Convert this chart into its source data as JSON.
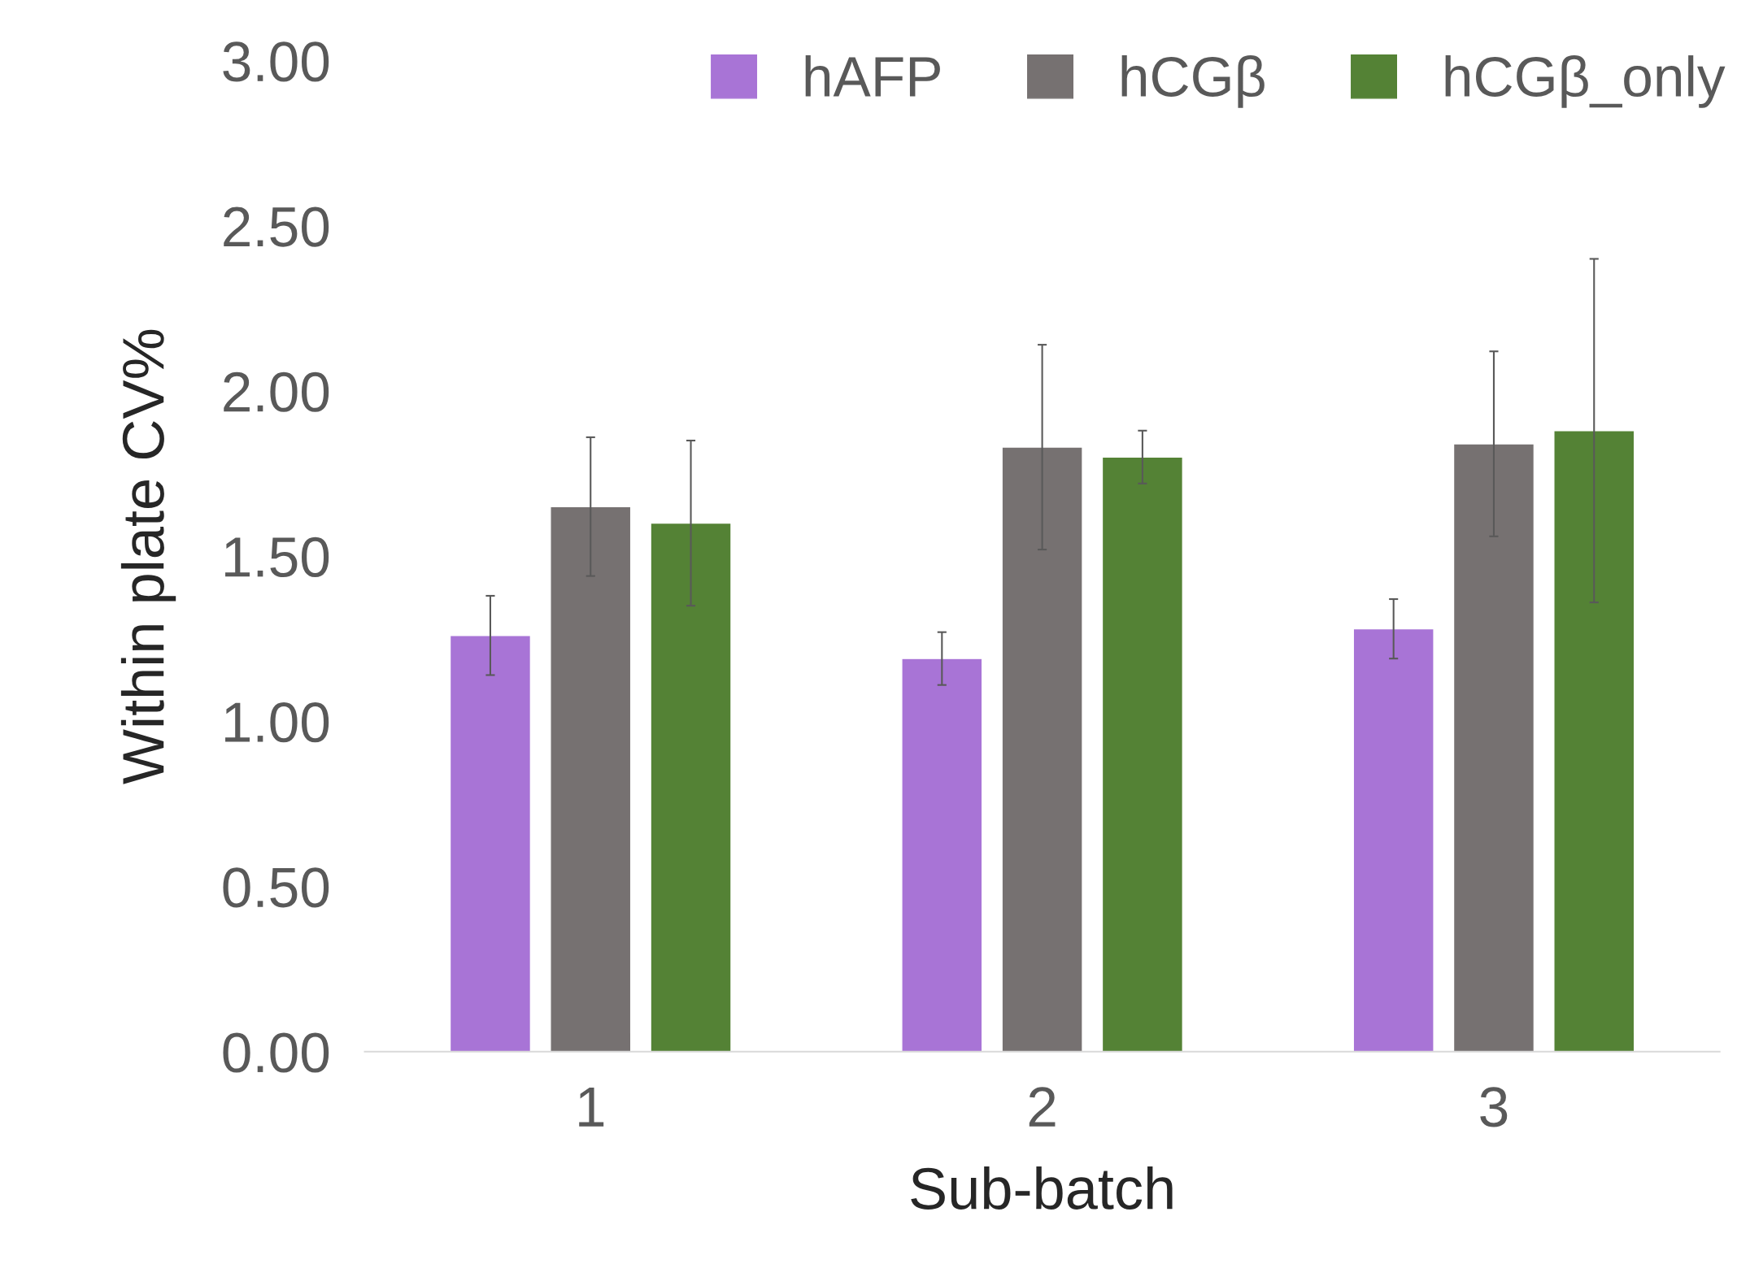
{
  "chart_data": {
    "type": "bar",
    "xlabel": "Sub-batch",
    "ylabel": "Within plate CV%",
    "categories": [
      "1",
      "2",
      "3"
    ],
    "series": [
      {
        "name": "hAFP",
        "color": "#a874d6",
        "values": [
          1.26,
          1.19,
          1.28
        ],
        "errors": [
          [
            1.14,
            1.38
          ],
          [
            1.11,
            1.27
          ],
          [
            1.19,
            1.37
          ]
        ]
      },
      {
        "name": "hCGβ",
        "color": "#767171",
        "values": [
          1.65,
          1.83,
          1.84
        ],
        "errors": [
          [
            1.44,
            1.86
          ],
          [
            1.52,
            2.14
          ],
          [
            1.56,
            2.12
          ]
        ]
      },
      {
        "name": "hCGβ_only",
        "color": "#548235",
        "values": [
          1.6,
          1.8,
          1.88
        ],
        "errors": [
          [
            1.35,
            1.85
          ],
          [
            1.72,
            1.88
          ],
          [
            1.36,
            2.4
          ]
        ]
      }
    ],
    "ylim": [
      0,
      3
    ],
    "yticks": [
      {
        "value": 0,
        "label": "0.00"
      },
      {
        "value": 0.5,
        "label": "0.50"
      },
      {
        "value": 1,
        "label": "1.00"
      },
      {
        "value": 1.5,
        "label": "1.50"
      },
      {
        "value": 2,
        "label": "2.00"
      },
      {
        "value": 2.5,
        "label": "2.50"
      },
      {
        "value": 3,
        "label": "3.00"
      }
    ],
    "legend": "top right",
    "grid": false
  }
}
